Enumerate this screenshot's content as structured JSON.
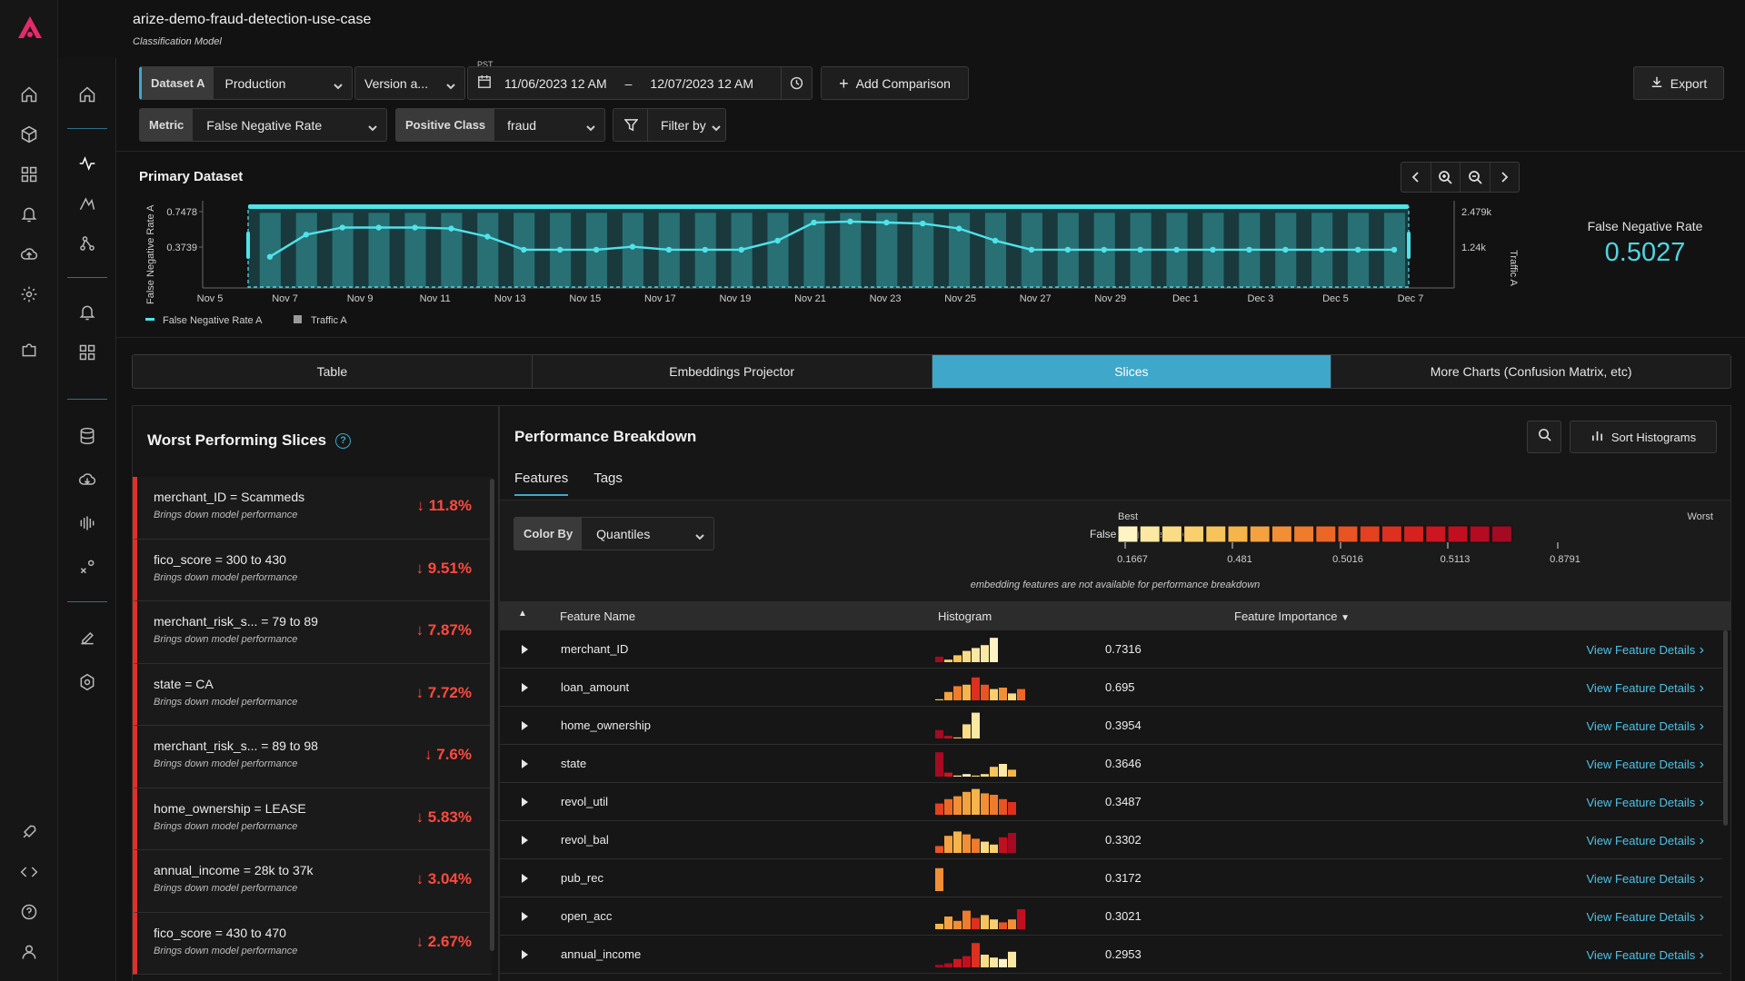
{
  "header": {
    "title": "arize-demo-fraud-detection-use-case",
    "subtitle": "Classification Model"
  },
  "controls": {
    "dataset_label": "Dataset A",
    "dataset_env": "Production",
    "version": "Version a...",
    "tz": "PST",
    "start_date": "11/06/2023 12 AM",
    "date_sep": "–",
    "end_date": "12/07/2023 12 AM",
    "add_comparison": "Add Comparison",
    "export": "Export",
    "metric_label": "Metric",
    "metric_value": "False Negative Rate",
    "positive_class_label": "Positive Class",
    "positive_class_value": "fraud",
    "filter_label": "Filter by"
  },
  "primary": {
    "title": "Primary Dataset",
    "metric_name": "False Negative Rate",
    "metric_value": "0.5027"
  },
  "chart_data": {
    "type": "line",
    "y_left_label": "False Negative Rate A",
    "y_right_label": "Traffic A",
    "y_left_ticks": [
      "0.7478",
      "0.3739"
    ],
    "y_right_ticks": [
      "2.479k",
      "1.24k"
    ],
    "x_ticks": [
      "Nov 5",
      "Nov 7",
      "Nov 9",
      "Nov 11",
      "Nov 13",
      "Nov 15",
      "Nov 17",
      "Nov 19",
      "Nov 21",
      "Nov 23",
      "Nov 25",
      "Nov 27",
      "Nov 29",
      "Dec 1",
      "Dec 3",
      "Dec 5",
      "Dec 7"
    ],
    "legend": [
      "False Negative Rate A",
      "Traffic A"
    ],
    "series": [
      {
        "name": "False Negative Rate A",
        "values": [
          0.3,
          0.52,
          0.59,
          0.59,
          0.59,
          0.58,
          0.5,
          0.37,
          0.37,
          0.37,
          0.4,
          0.37,
          0.37,
          0.37,
          0.46,
          0.64,
          0.65,
          0.64,
          0.63,
          0.58,
          0.46,
          0.37,
          0.37,
          0.37,
          0.37,
          0.37,
          0.37,
          0.37,
          0.37,
          0.37,
          0.37,
          0.37
        ]
      },
      {
        "name": "Traffic A",
        "values": [
          2.3,
          2.3,
          2.3,
          2.3,
          2.3,
          2.3,
          2.3,
          2.3,
          2.3,
          2.3,
          2.3,
          2.3,
          2.3,
          2.3,
          2.3,
          2.3,
          2.3,
          2.3,
          2.3,
          2.3,
          2.3,
          2.3,
          2.3,
          2.3,
          2.3,
          2.3,
          2.3,
          2.3,
          2.3,
          2.3,
          2.3,
          2.3
        ]
      }
    ]
  },
  "tabs": [
    {
      "label": "Table",
      "active": false
    },
    {
      "label": "Embeddings Projector",
      "active": false
    },
    {
      "label": "Slices",
      "active": true
    },
    {
      "label": "More Charts (Confusion Matrix, etc)",
      "active": false
    }
  ],
  "worst": {
    "title": "Worst Performing Slices",
    "help": "?",
    "slices": [
      {
        "name": "merchant_ID = Scammeds",
        "desc": "Brings down model performance",
        "value": "↓ 11.8%"
      },
      {
        "name": "fico_score = 300 to 430",
        "desc": "Brings down model performance",
        "value": "↓ 9.51%"
      },
      {
        "name": "merchant_risk_s... = 79 to 89",
        "desc": "Brings down model performance",
        "value": "↓ 7.87%"
      },
      {
        "name": "state = CA",
        "desc": "Brings down model performance",
        "value": "↓ 7.72%"
      },
      {
        "name": "merchant_risk_s... = 89 to 98",
        "desc": "Brings down model performance",
        "value": "↓ 7.6%"
      },
      {
        "name": "home_ownership = LEASE",
        "desc": "Brings down model performance",
        "value": "↓ 5.83%"
      },
      {
        "name": "annual_income = 28k to 37k",
        "desc": "Brings down model performance",
        "value": "↓ 3.04%"
      },
      {
        "name": "fico_score = 430 to 470",
        "desc": "Brings down model performance",
        "value": "↓ 2.67%"
      }
    ]
  },
  "breakdown": {
    "title": "Performance Breakdown",
    "sort_label": "Sort Histograms",
    "tabs": [
      "Features",
      "Tags"
    ],
    "color_by_label": "Color By",
    "color_by_value": "Quantiles",
    "legend_label": "False Negative Rate:",
    "legend_best": "Best",
    "legend_worst": "Worst",
    "legend_ticks": [
      "0.1667",
      "0.481",
      "0.5016",
      "0.5113",
      "0.8791"
    ],
    "legend_colors": [
      "#fdf3c4",
      "#fbe8a3",
      "#fbdc86",
      "#f9d06d",
      "#f7c35b",
      "#f6b44a",
      "#f4a23f",
      "#f28f35",
      "#ef7b2c",
      "#ec6726",
      "#e85422",
      "#e3411f",
      "#dd301f",
      "#d6221f",
      "#cd161f",
      "#c20f20",
      "#b50b22",
      "#a50a23"
    ],
    "note": "embedding features are not available for performance breakdown",
    "columns": [
      "Feature Name",
      "Histogram",
      "Feature Importance"
    ],
    "rows": [
      {
        "name": "merchant_ID",
        "importance": "0.7316",
        "link": "View Feature Details",
        "hist": [
          [
            0.25,
            "#a50a23"
          ],
          [
            0.15,
            "#f6d070"
          ],
          [
            0.3,
            "#f7c35b"
          ],
          [
            0.45,
            "#fbdc86"
          ],
          [
            0.55,
            "#fbe8a3"
          ],
          [
            0.65,
            "#fbe8a3"
          ],
          [
            0.9,
            "#fdf3c4"
          ]
        ]
      },
      {
        "name": "loan_amount",
        "importance": "0.695",
        "link": "View Feature Details",
        "hist": [
          [
            0.1,
            "#f7c35b"
          ],
          [
            0.35,
            "#f4a23f"
          ],
          [
            0.55,
            "#ef7b2c"
          ],
          [
            0.6,
            "#f6b44a"
          ],
          [
            0.85,
            "#dd301f"
          ],
          [
            0.6,
            "#e85422"
          ],
          [
            0.45,
            "#f9d06d"
          ],
          [
            0.5,
            "#f28f35"
          ],
          [
            0.3,
            "#fbdc86"
          ],
          [
            0.45,
            "#ec6726"
          ],
          [
            0.7,
            "#c20f20"
          ]
        ]
      },
      {
        "name": "home_ownership",
        "importance": "0.3954",
        "link": "View Feature Details",
        "hist": [
          [
            0.35,
            "#a50a23"
          ],
          [
            0.15,
            "#c20f20"
          ],
          [
            0.1,
            "#f7c35b"
          ],
          [
            0.55,
            "#fbdc86"
          ],
          [
            0.95,
            "#fbe8a3"
          ]
        ]
      },
      {
        "name": "state",
        "importance": "0.3646",
        "link": "View Feature Details",
        "hist": [
          [
            0.9,
            "#a50a23"
          ],
          [
            0.2,
            "#cd161f"
          ],
          [
            0.1,
            "#fbe8a3"
          ],
          [
            0.15,
            "#fdf3c4"
          ],
          [
            0.1,
            "#f9d06d"
          ],
          [
            0.15,
            "#fbdc86"
          ],
          [
            0.4,
            "#f7c35b"
          ],
          [
            0.5,
            "#fbe8a3"
          ],
          [
            0.3,
            "#f6b44a"
          ]
        ]
      },
      {
        "name": "revol_util",
        "importance": "0.3487",
        "link": "View Feature Details",
        "hist": [
          [
            0.45,
            "#e3411f"
          ],
          [
            0.6,
            "#ec6726"
          ],
          [
            0.7,
            "#f28f35"
          ],
          [
            0.85,
            "#f4a23f"
          ],
          [
            0.95,
            "#f6b44a"
          ],
          [
            0.8,
            "#f28f35"
          ],
          [
            0.75,
            "#ef7b2c"
          ],
          [
            0.6,
            "#e85422"
          ],
          [
            0.5,
            "#dd301f"
          ]
        ]
      },
      {
        "name": "revol_bal",
        "importance": "0.3302",
        "link": "View Feature Details",
        "hist": [
          [
            0.3,
            "#e85422"
          ],
          [
            0.65,
            "#f4a23f"
          ],
          [
            0.8,
            "#f6b44a"
          ],
          [
            0.7,
            "#f28f35"
          ],
          [
            0.55,
            "#ef7b2c"
          ],
          [
            0.45,
            "#fbdc86"
          ],
          [
            0.35,
            "#f9d06d"
          ],
          [
            0.6,
            "#c20f20"
          ],
          [
            0.75,
            "#a50a23"
          ]
        ]
      },
      {
        "name": "pub_rec",
        "importance": "0.3172",
        "link": "View Feature Details",
        "hist": [
          [
            0.85,
            "#f28f35"
          ]
        ]
      },
      {
        "name": "open_acc",
        "importance": "0.3021",
        "link": "View Feature Details",
        "hist": [
          [
            0.25,
            "#f6b44a"
          ],
          [
            0.5,
            "#f4a23f"
          ],
          [
            0.35,
            "#f28f35"
          ],
          [
            0.7,
            "#ef7b2c"
          ],
          [
            0.45,
            "#dd301f"
          ],
          [
            0.55,
            "#f7c35b"
          ],
          [
            0.4,
            "#f9d06d"
          ],
          [
            0.3,
            "#e85422"
          ],
          [
            0.4,
            "#f28f35"
          ],
          [
            0.75,
            "#c20f20"
          ]
        ]
      },
      {
        "name": "annual_income",
        "importance": "0.2953",
        "link": "View Feature Details",
        "hist": [
          [
            0.15,
            "#a50a23"
          ],
          [
            0.2,
            "#b50b22"
          ],
          [
            0.35,
            "#cd161f"
          ],
          [
            0.45,
            "#c20f20"
          ],
          [
            0.9,
            "#dd301f"
          ],
          [
            0.5,
            "#fbdc86"
          ],
          [
            0.4,
            "#fbe8a3"
          ],
          [
            0.35,
            "#fdf3c4"
          ],
          [
            0.6,
            "#fbe8a3"
          ]
        ]
      }
    ]
  }
}
